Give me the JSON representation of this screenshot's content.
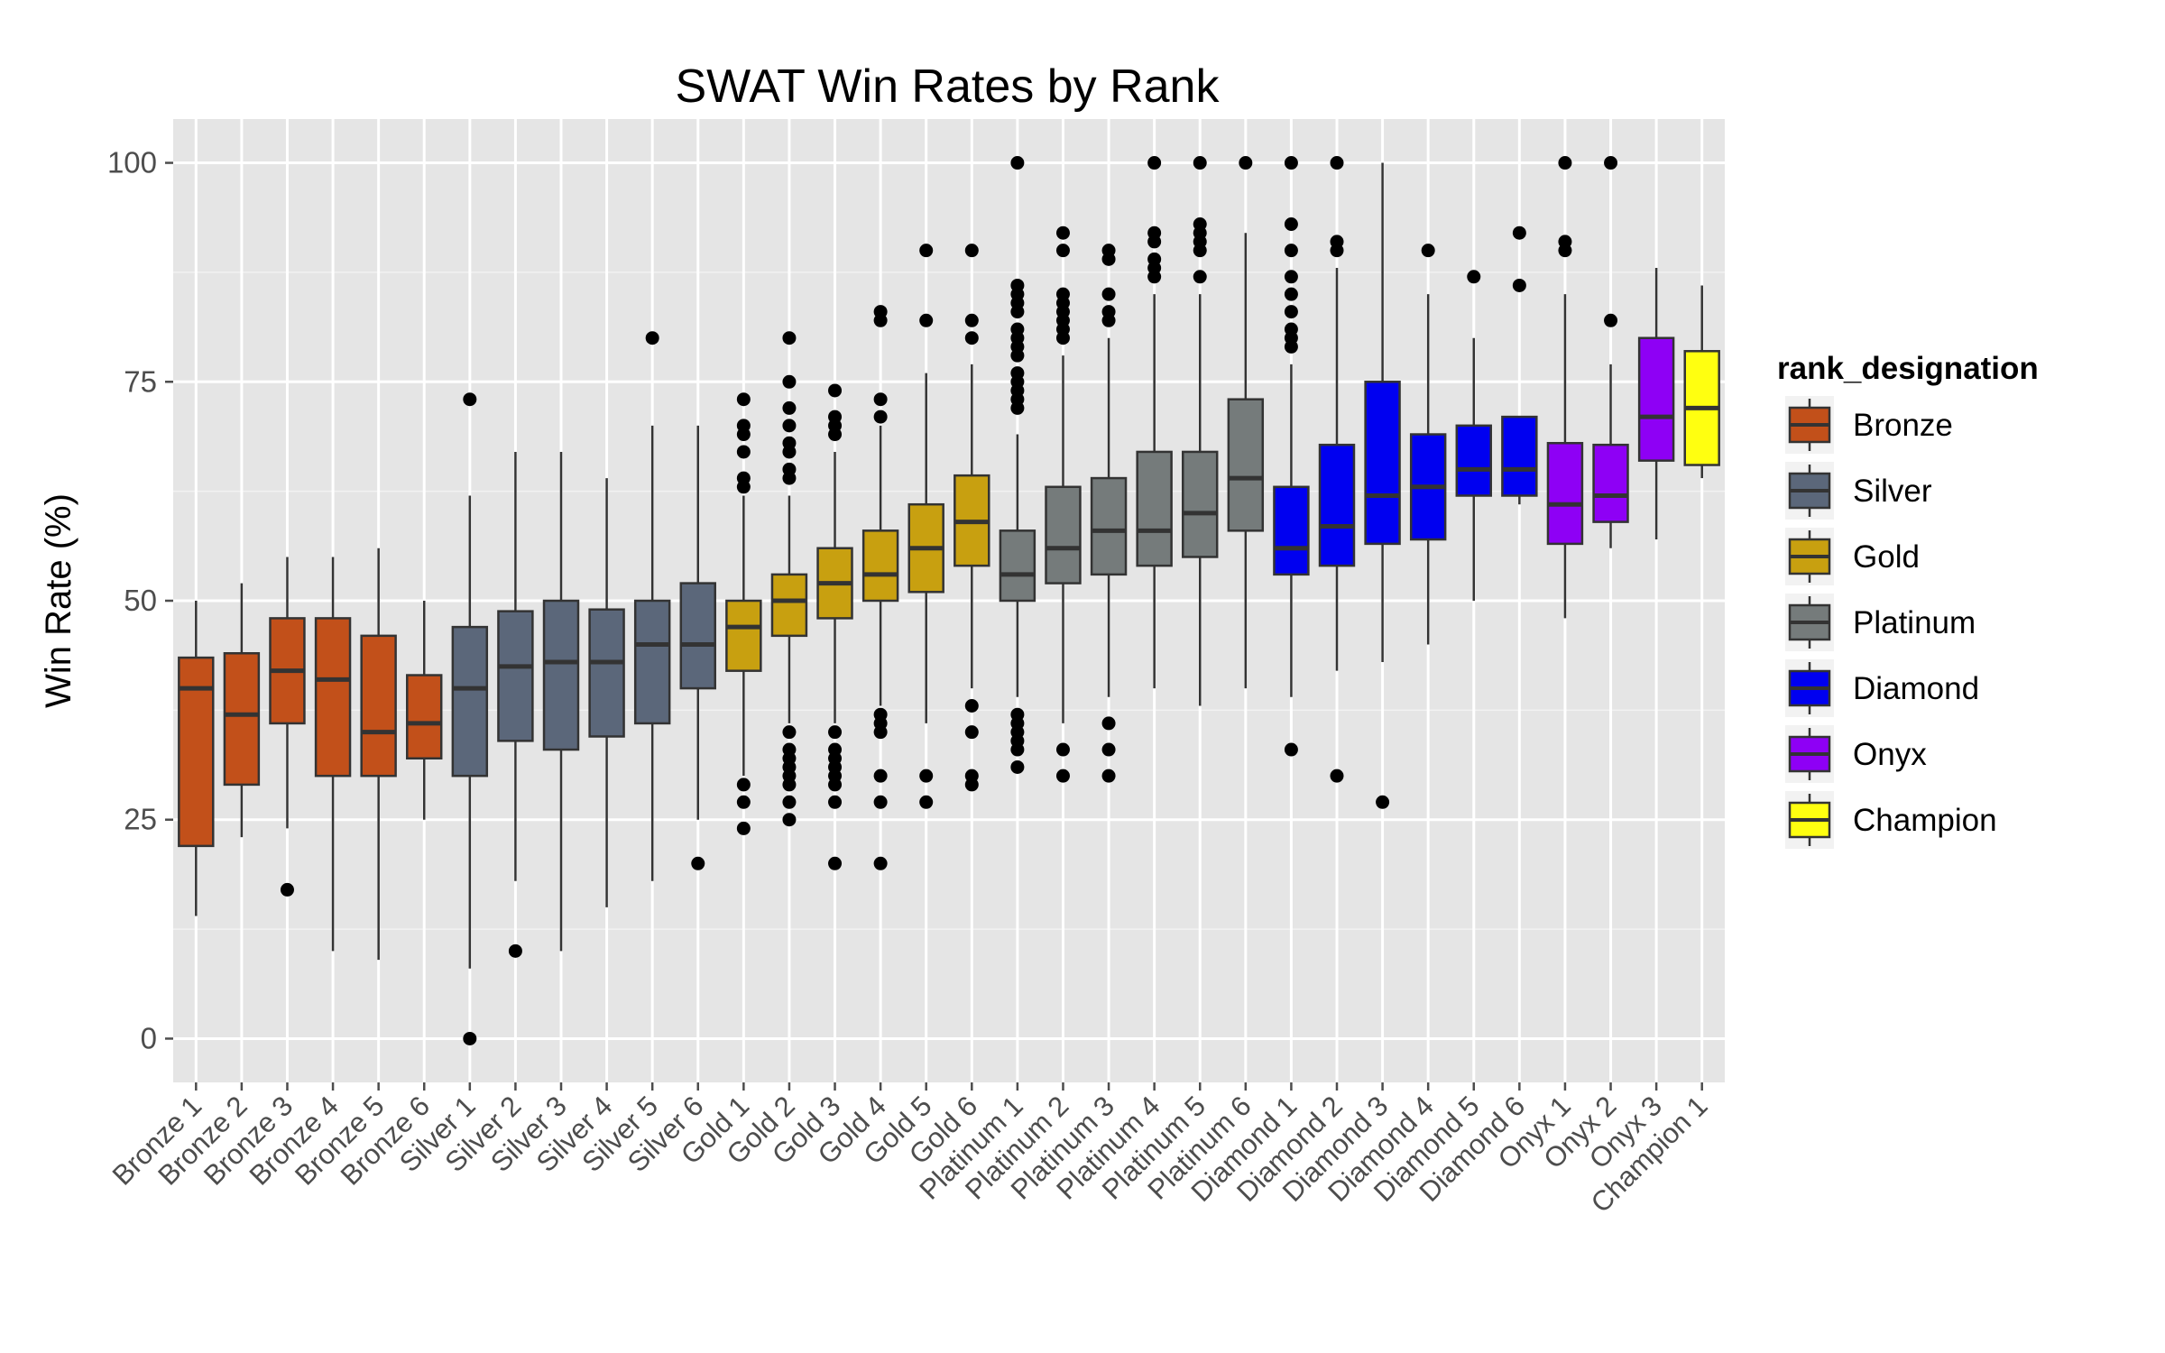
{
  "chart_data": {
    "type": "boxplot",
    "title": "SWAT Win Rates by Rank",
    "xlabel": "",
    "ylabel": "Win Rate (%)",
    "ylim": [
      -5,
      105
    ],
    "yticks": [
      0,
      25,
      50,
      75,
      100
    ],
    "grid": true,
    "legend": {
      "title": "rank_designation",
      "position": "right",
      "items": [
        {
          "label": "Bronze",
          "color": "#C2501A"
        },
        {
          "label": "Silver",
          "color": "#5B677A"
        },
        {
          "label": "Gold",
          "color": "#C8A010"
        },
        {
          "label": "Platinum",
          "color": "#757B7B"
        },
        {
          "label": "Diamond",
          "color": "#0000F0"
        },
        {
          "label": "Onyx",
          "color": "#8E00F5"
        },
        {
          "label": "Champion",
          "color": "#FFFF10"
        }
      ]
    },
    "boxes": [
      {
        "label": "Bronze 1",
        "group": "Bronze",
        "whisker_low": 14,
        "q1": 22,
        "median": 40,
        "q3": 43.5,
        "whisker_high": 50,
        "outliers": []
      },
      {
        "label": "Bronze 2",
        "group": "Bronze",
        "whisker_low": 23,
        "q1": 29,
        "median": 37,
        "q3": 44,
        "whisker_high": 52,
        "outliers": []
      },
      {
        "label": "Bronze 3",
        "group": "Bronze",
        "whisker_low": 24,
        "q1": 36,
        "median": 42,
        "q3": 48,
        "whisker_high": 55,
        "outliers": [
          17
        ]
      },
      {
        "label": "Bronze 4",
        "group": "Bronze",
        "whisker_low": 10,
        "q1": 30,
        "median": 41,
        "q3": 48,
        "whisker_high": 55,
        "outliers": []
      },
      {
        "label": "Bronze 5",
        "group": "Bronze",
        "whisker_low": 9,
        "q1": 30,
        "median": 35,
        "q3": 46,
        "whisker_high": 56,
        "outliers": []
      },
      {
        "label": "Bronze 6",
        "group": "Bronze",
        "whisker_low": 25,
        "q1": 32,
        "median": 36,
        "q3": 41.5,
        "whisker_high": 50,
        "outliers": []
      },
      {
        "label": "Silver 1",
        "group": "Silver",
        "whisker_low": 8,
        "q1": 30,
        "median": 40,
        "q3": 47,
        "whisker_high": 62,
        "outliers": [
          0,
          73
        ]
      },
      {
        "label": "Silver 2",
        "group": "Silver",
        "whisker_low": 18,
        "q1": 34,
        "median": 42.5,
        "q3": 48.8,
        "whisker_high": 67,
        "outliers": [
          10
        ]
      },
      {
        "label": "Silver 3",
        "group": "Silver",
        "whisker_low": 10,
        "q1": 33,
        "median": 43,
        "q3": 50,
        "whisker_high": 67,
        "outliers": []
      },
      {
        "label": "Silver 4",
        "group": "Silver",
        "whisker_low": 15,
        "q1": 34.5,
        "median": 43,
        "q3": 49,
        "whisker_high": 64,
        "outliers": []
      },
      {
        "label": "Silver 5",
        "group": "Silver",
        "whisker_low": 18,
        "q1": 36,
        "median": 45,
        "q3": 50,
        "whisker_high": 70,
        "outliers": [
          80
        ]
      },
      {
        "label": "Silver 6",
        "group": "Silver",
        "whisker_low": 25,
        "q1": 40,
        "median": 45,
        "q3": 52,
        "whisker_high": 70,
        "outliers": [
          20
        ]
      },
      {
        "label": "Gold 1",
        "group": "Gold",
        "whisker_low": 30,
        "q1": 42,
        "median": 47,
        "q3": 50,
        "whisker_high": 62,
        "outliers": [
          24,
          27,
          29,
          63,
          64,
          67,
          69,
          70,
          73
        ]
      },
      {
        "label": "Gold 2",
        "group": "Gold",
        "whisker_low": 36,
        "q1": 46,
        "median": 50,
        "q3": 53,
        "whisker_high": 62,
        "outliers": [
          25,
          27,
          29,
          30,
          31,
          32,
          33,
          35,
          64,
          65,
          67,
          68,
          70,
          72,
          75,
          80
        ]
      },
      {
        "label": "Gold 3",
        "group": "Gold",
        "whisker_low": 36,
        "q1": 48,
        "median": 52,
        "q3": 56,
        "whisker_high": 67,
        "outliers": [
          20,
          27,
          29,
          30,
          31,
          32,
          33,
          35,
          69,
          70,
          71,
          74
        ]
      },
      {
        "label": "Gold 4",
        "group": "Gold",
        "whisker_low": 38,
        "q1": 50,
        "median": 53,
        "q3": 58,
        "whisker_high": 70,
        "outliers": [
          20,
          27,
          30,
          35,
          36,
          37,
          71,
          73,
          82,
          83
        ]
      },
      {
        "label": "Gold 5",
        "group": "Gold",
        "whisker_low": 36,
        "q1": 51,
        "median": 56,
        "q3": 61,
        "whisker_high": 76,
        "outliers": [
          27,
          30,
          82,
          90
        ]
      },
      {
        "label": "Gold 6",
        "group": "Gold",
        "whisker_low": 40,
        "q1": 54,
        "median": 59,
        "q3": 64.3,
        "whisker_high": 77,
        "outliers": [
          29,
          30,
          35,
          38,
          80,
          82,
          90
        ]
      },
      {
        "label": "Platinum 1",
        "group": "Platinum",
        "whisker_low": 39,
        "q1": 50,
        "median": 53,
        "q3": 58,
        "whisker_high": 69,
        "outliers": [
          31,
          33,
          34,
          35,
          36,
          37,
          72,
          73,
          74,
          75,
          76,
          78,
          79,
          80,
          81,
          83,
          84,
          85,
          86,
          100
        ]
      },
      {
        "label": "Platinum 2",
        "group": "Platinum",
        "whisker_low": 36,
        "q1": 52,
        "median": 56,
        "q3": 63,
        "whisker_high": 78,
        "outliers": [
          30,
          33,
          80,
          81,
          82,
          83,
          84,
          85,
          90,
          92
        ]
      },
      {
        "label": "Platinum 3",
        "group": "Platinum",
        "whisker_low": 39,
        "q1": 53,
        "median": 58,
        "q3": 64,
        "whisker_high": 80,
        "outliers": [
          30,
          33,
          36,
          82,
          83,
          85,
          89,
          90
        ]
      },
      {
        "label": "Platinum 4",
        "group": "Platinum",
        "whisker_low": 40,
        "q1": 54,
        "median": 58,
        "q3": 67,
        "whisker_high": 85,
        "outliers": [
          87,
          88,
          89,
          91,
          92,
          100
        ]
      },
      {
        "label": "Platinum 5",
        "group": "Platinum",
        "whisker_low": 38,
        "q1": 55,
        "median": 60,
        "q3": 67,
        "whisker_high": 85,
        "outliers": [
          87,
          90,
          91,
          92,
          93,
          100
        ]
      },
      {
        "label": "Platinum 6",
        "group": "Platinum",
        "whisker_low": 40,
        "q1": 58,
        "median": 64,
        "q3": 73,
        "whisker_high": 92,
        "outliers": [
          100
        ]
      },
      {
        "label": "Diamond 1",
        "group": "Diamond",
        "whisker_low": 39,
        "q1": 53,
        "median": 56,
        "q3": 63,
        "whisker_high": 77,
        "outliers": [
          33,
          79,
          80,
          81,
          83,
          85,
          87,
          90,
          93,
          100
        ]
      },
      {
        "label": "Diamond 2",
        "group": "Diamond",
        "whisker_low": 42,
        "q1": 54,
        "median": 58.5,
        "q3": 67.8,
        "whisker_high": 88,
        "outliers": [
          30,
          90,
          91,
          100
        ]
      },
      {
        "label": "Diamond 3",
        "group": "Diamond",
        "whisker_low": 43,
        "q1": 56.5,
        "median": 62,
        "q3": 75,
        "whisker_high": 100,
        "outliers": [
          27
        ]
      },
      {
        "label": "Diamond 4",
        "group": "Diamond",
        "whisker_low": 45,
        "q1": 57,
        "median": 63,
        "q3": 69,
        "whisker_high": 85,
        "outliers": [
          90
        ]
      },
      {
        "label": "Diamond 5",
        "group": "Diamond",
        "whisker_low": 50,
        "q1": 62,
        "median": 65,
        "q3": 70,
        "whisker_high": 80,
        "outliers": [
          87
        ]
      },
      {
        "label": "Diamond 6",
        "group": "Diamond",
        "whisker_low": 61,
        "q1": 62,
        "median": 65,
        "q3": 71,
        "whisker_high": 71,
        "outliers": [
          86,
          92
        ]
      },
      {
        "label": "Onyx 1",
        "group": "Onyx",
        "whisker_low": 48,
        "q1": 56.5,
        "median": 61,
        "q3": 68,
        "whisker_high": 85,
        "outliers": [
          90,
          91,
          100
        ]
      },
      {
        "label": "Onyx 2",
        "group": "Onyx",
        "whisker_low": 56,
        "q1": 59,
        "median": 62,
        "q3": 67.8,
        "whisker_high": 77,
        "outliers": [
          82,
          100
        ]
      },
      {
        "label": "Onyx 3",
        "group": "Onyx",
        "whisker_low": 57,
        "q1": 66,
        "median": 71,
        "q3": 80,
        "whisker_high": 88,
        "outliers": []
      },
      {
        "label": "Champion 1",
        "group": "Champion",
        "whisker_low": 64,
        "q1": 65.5,
        "median": 72,
        "q3": 78.5,
        "whisker_high": 86,
        "outliers": []
      }
    ]
  }
}
